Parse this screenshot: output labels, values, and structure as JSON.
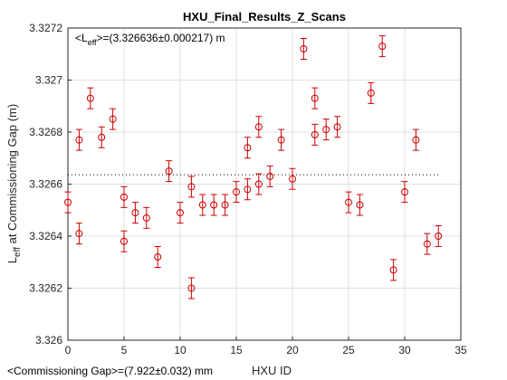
{
  "chart_data": {
    "type": "scatter",
    "title": "HXU_Final_Results_Z_Scans",
    "xlabel": "HXU ID",
    "ylabel_main": "L",
    "ylabel_sub": "eff",
    "ylabel_rest": " at Commissioning Gap (m)",
    "xlim": [
      0,
      35
    ],
    "ylim": [
      3.326,
      3.3272
    ],
    "x_ticks": [
      "0",
      "5",
      "10",
      "15",
      "20",
      "25",
      "30",
      "35"
    ],
    "y_ticks": [
      "3.326",
      "3.3262",
      "3.3264",
      "3.3266",
      "3.3268",
      "3.327",
      "3.3272"
    ],
    "grid": true,
    "marker_color": "#cc0000",
    "reference_line": {
      "y": 3.326636,
      "x_range": [
        0,
        33
      ],
      "style": "dotted"
    },
    "annotation_main": "<L",
    "annotation_sub": "eff",
    "annotation_rest": ">=(3.326636±0.000217) m",
    "footnote": "<Commissioning Gap>=(7.922±0.032) mm",
    "error": 4e-05,
    "points": [
      {
        "x": 0,
        "y": 3.32653
      },
      {
        "x": 1,
        "y": 3.32641
      },
      {
        "x": 1,
        "y": 3.32677
      },
      {
        "x": 2,
        "y": 3.32693
      },
      {
        "x": 3,
        "y": 3.32678
      },
      {
        "x": 4,
        "y": 3.32685
      },
      {
        "x": 5,
        "y": 3.32655
      },
      {
        "x": 5,
        "y": 3.32638
      },
      {
        "x": 6,
        "y": 3.32649
      },
      {
        "x": 7,
        "y": 3.32647
      },
      {
        "x": 8,
        "y": 3.32632
      },
      {
        "x": 9,
        "y": 3.32665
      },
      {
        "x": 10,
        "y": 3.32649
      },
      {
        "x": 11,
        "y": 3.32659
      },
      {
        "x": 11,
        "y": 3.3262
      },
      {
        "x": 12,
        "y": 3.32652
      },
      {
        "x": 13,
        "y": 3.32652
      },
      {
        "x": 14,
        "y": 3.32652
      },
      {
        "x": 15,
        "y": 3.32657
      },
      {
        "x": 16,
        "y": 3.32674
      },
      {
        "x": 16,
        "y": 3.32658
      },
      {
        "x": 17,
        "y": 3.32682
      },
      {
        "x": 17,
        "y": 3.3266
      },
      {
        "x": 18,
        "y": 3.32663
      },
      {
        "x": 19,
        "y": 3.32677
      },
      {
        "x": 20,
        "y": 3.32662
      },
      {
        "x": 21,
        "y": 3.32712
      },
      {
        "x": 22,
        "y": 3.32693
      },
      {
        "x": 22,
        "y": 3.32679
      },
      {
        "x": 23,
        "y": 3.32681
      },
      {
        "x": 24,
        "y": 3.32682
      },
      {
        "x": 25,
        "y": 3.32653
      },
      {
        "x": 26,
        "y": 3.32652
      },
      {
        "x": 27,
        "y": 3.32695
      },
      {
        "x": 28,
        "y": 3.32713
      },
      {
        "x": 29,
        "y": 3.32627
      },
      {
        "x": 30,
        "y": 3.32657
      },
      {
        "x": 31,
        "y": 3.32677
      },
      {
        "x": 32,
        "y": 3.32637
      },
      {
        "x": 33,
        "y": 3.3264
      }
    ]
  }
}
